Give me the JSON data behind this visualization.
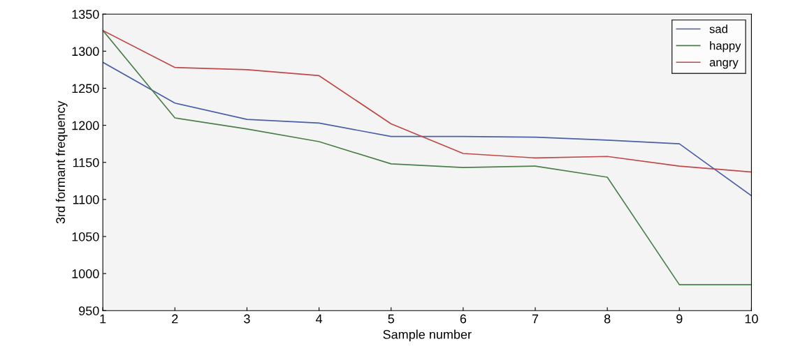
{
  "chart_data": {
    "type": "line",
    "xlabel": "Sample number",
    "ylabel": "3rd formant frequency",
    "x": [
      1,
      2,
      3,
      4,
      5,
      6,
      7,
      8,
      9,
      10
    ],
    "series": [
      {
        "name": "sad",
        "color": "#4a5fa8",
        "values": [
          1285,
          1230,
          1208,
          1203,
          1185,
          1185,
          1184,
          1180,
          1175,
          1105
        ]
      },
      {
        "name": "happy",
        "color": "#4a7f4a",
        "values": [
          1328,
          1210,
          1195,
          1178,
          1148,
          1143,
          1145,
          1130,
          985,
          985
        ]
      },
      {
        "name": "angry",
        "color": "#c04848",
        "values": [
          1328,
          1278,
          1275,
          1267,
          1202,
          1162,
          1156,
          1158,
          1145,
          1137
        ]
      }
    ],
    "xlim": [
      1,
      10
    ],
    "ylim": [
      950,
      1350
    ],
    "xticks": [
      1,
      2,
      3,
      4,
      5,
      6,
      7,
      8,
      9,
      10
    ],
    "yticks": [
      950,
      1000,
      1050,
      1100,
      1150,
      1200,
      1250,
      1300,
      1350
    ],
    "grid": false,
    "legend": "top right",
    "marker": "none",
    "line_style": "solid"
  }
}
